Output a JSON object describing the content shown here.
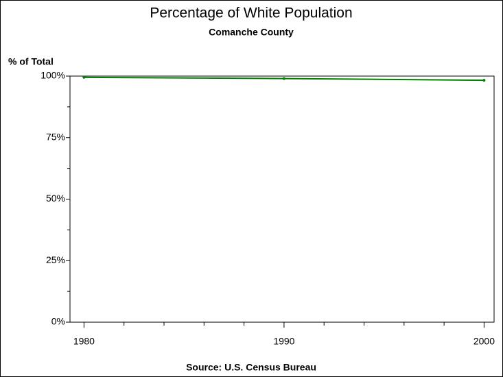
{
  "chart_data": {
    "type": "line",
    "title": "Percentage of White Population",
    "subtitle": "Comanche County",
    "y_label": "% of Total",
    "footnote": "Source: U.S. Census Bureau",
    "x": [
      1980,
      1990,
      2000
    ],
    "series": [
      {
        "name": "White",
        "color": "#008000",
        "values": [
          99.5,
          99.0,
          98.3
        ]
      }
    ],
    "xlim": [
      1979.3,
      2000.5
    ],
    "xticks": [
      1980,
      1990,
      2000
    ],
    "xminor_ticks": [
      1982,
      1984,
      1986,
      1988,
      1992,
      1994,
      1996,
      1998
    ],
    "ylim": [
      0,
      100
    ],
    "yticks": [
      {
        "value": 0,
        "label": "0%"
      },
      {
        "value": 25,
        "label": "25%"
      },
      {
        "value": 50,
        "label": "50%"
      },
      {
        "value": 75,
        "label": "75%"
      },
      {
        "value": 100,
        "label": "100%"
      }
    ],
    "yminor_ticks": [
      12.5,
      37.5,
      62.5,
      87.5
    ],
    "grid": false
  }
}
